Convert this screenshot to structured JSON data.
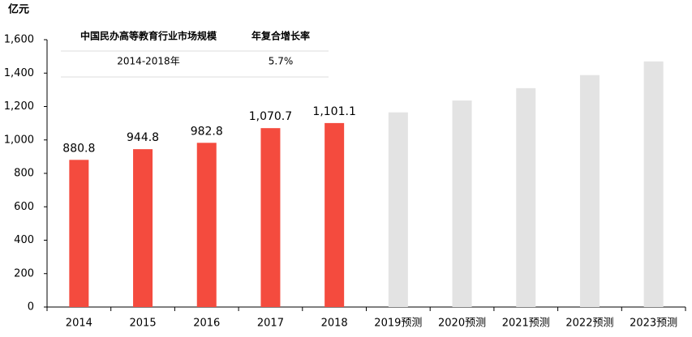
{
  "chart_data": {
    "type": "bar",
    "y_label": "亿元",
    "categories": [
      "2014",
      "2015",
      "2016",
      "2017",
      "2018",
      "2019预测",
      "2020预测",
      "2021预测",
      "2022预测",
      "2023预测"
    ],
    "values": [
      880.8,
      944.8,
      982.8,
      1070.7,
      1101.1,
      1165,
      1236,
      1310,
      1388,
      1470
    ],
    "value_labels": [
      "880.8",
      "944.8",
      "982.8",
      "1,070.7",
      "1,101.1",
      null,
      null,
      null,
      null,
      null
    ],
    "colors": [
      "#f44b3e",
      "#f44b3e",
      "#f44b3e",
      "#f44b3e",
      "#f44b3e",
      "#e3e3e3",
      "#e3e3e3",
      "#e3e3e3",
      "#e3e3e3",
      "#e3e3e3"
    ],
    "ylim": [
      0,
      1600
    ],
    "yticks": [
      0,
      200,
      400,
      600,
      800,
      {
        "value": 1000,
        "label": "1,000"
      },
      {
        "value": 1200,
        "label": "1,200"
      },
      {
        "value": 1400,
        "label": "1,400"
      },
      {
        "value": 1600,
        "label": "1,600"
      }
    ],
    "grid": false,
    "table": {
      "headers": [
        "中国民办高等教育行业市场规模",
        "年复合增长率"
      ],
      "rows": [
        [
          "2014-2018年",
          "5.7%"
        ]
      ]
    }
  }
}
